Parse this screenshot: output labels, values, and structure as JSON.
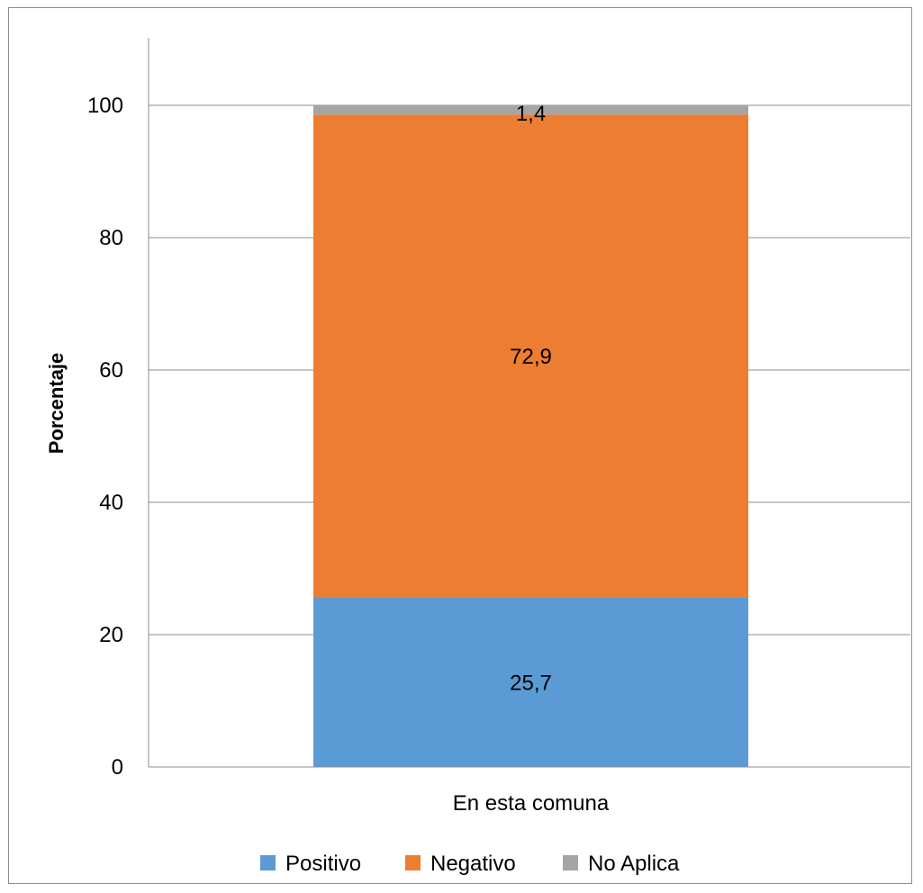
{
  "chart_data": {
    "type": "bar",
    "stacked": true,
    "categories": [
      "En esta comuna"
    ],
    "series": [
      {
        "name": "Positivo",
        "values": [
          25.7
        ],
        "labels": [
          "25,7"
        ],
        "color": "#5b9bd5"
      },
      {
        "name": "Negativo",
        "values": [
          72.9
        ],
        "labels": [
          "72,9"
        ],
        "color": "#ed7d31"
      },
      {
        "name": "No Aplica",
        "values": [
          1.4
        ],
        "labels": [
          "1,4"
        ],
        "color": "#a5a5a5"
      }
    ],
    "title": "",
    "xlabel": "",
    "ylabel": "Porcentaje",
    "ylim": [
      0,
      110
    ],
    "yticks": [
      0,
      20,
      40,
      60,
      80,
      100
    ],
    "ytick_labels": [
      "0",
      "20",
      "40",
      "60",
      "80",
      "100"
    ],
    "grid": true,
    "legend_position": "bottom"
  }
}
